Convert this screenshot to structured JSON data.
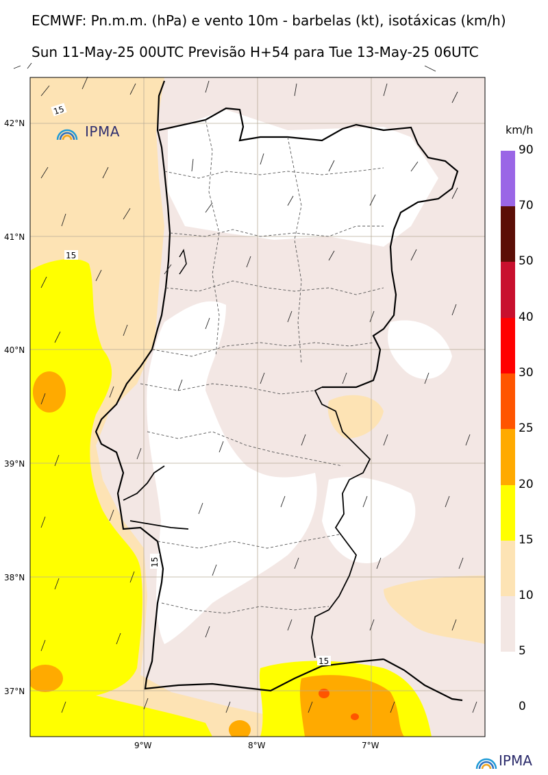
{
  "header": {
    "title": "ECMWF: Pn.m.m. (hPa) e vento 10m - barbelas (kt), isotáxicas (km/h)",
    "subtitle": "Sun 11-May-25 00UTC Previsão H+54 para Tue 13-May-25 06UTC"
  },
  "axes": {
    "lat_labels": [
      "42°N",
      "41°N",
      "40°N",
      "39°N",
      "38°N",
      "37°N"
    ],
    "lon_labels": [
      "9°W",
      "8°W",
      "7°W"
    ]
  },
  "isotach_labels": [
    "15",
    "15",
    "15",
    "15"
  ],
  "logo": {
    "text": "IPMA"
  },
  "colorbar": {
    "unit": "km/h",
    "levels": [
      "90",
      "70",
      "50",
      "40",
      "30",
      "25",
      "20",
      "15",
      "10",
      "5",
      "0"
    ],
    "colors": [
      "#9a66e6",
      "#5c0f07",
      "#c8102e",
      "#ff0000",
      "#ff5500",
      "#ffaa00",
      "#ffff00",
      "#fde3b4",
      "#f3e7e4",
      "#ffffff"
    ]
  },
  "fill_colors": {
    "sea_calm": "#fde3b4",
    "sea_strong": "#ffff00",
    "sea_stronger": "#ffaa00",
    "land_light": "#f3e7e4",
    "land_calm": "#ffffff"
  }
}
